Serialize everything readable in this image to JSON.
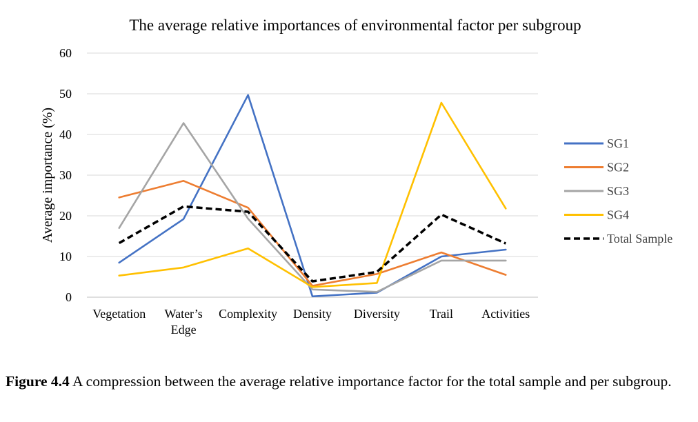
{
  "chart_data": {
    "type": "line",
    "title": "The average relative importances of environmental factor per subgroup",
    "xlabel": "",
    "ylabel": "Average importance (%)",
    "categories": [
      "Vegetation",
      "Water’s Edge",
      "Complexity",
      "Density",
      "Diversity",
      "Trail",
      "Activities"
    ],
    "category_lines": [
      [
        "Vegetation"
      ],
      [
        "Water’s",
        "Edge"
      ],
      [
        "Complexity"
      ],
      [
        "Density"
      ],
      [
        "Diversity"
      ],
      [
        "Trail"
      ],
      [
        "Activities"
      ]
    ],
    "ylim": [
      0,
      60
    ],
    "yticks": [
      0,
      10,
      20,
      30,
      40,
      50,
      60
    ],
    "grid": true,
    "legend_position": "right",
    "series": [
      {
        "name": "SG1",
        "color": "#4472C4",
        "dashed": false,
        "values": [
          8.5,
          19.2,
          49.7,
          0.2,
          1.1,
          10.0,
          11.7
        ]
      },
      {
        "name": "SG2",
        "color": "#ED7D31",
        "dashed": false,
        "values": [
          24.5,
          28.6,
          22.0,
          2.8,
          5.7,
          11.0,
          5.5
        ]
      },
      {
        "name": "SG3",
        "color": "#A5A5A5",
        "dashed": false,
        "values": [
          17.0,
          42.8,
          19.3,
          1.9,
          1.3,
          9.0,
          9.0
        ]
      },
      {
        "name": "SG4",
        "color": "#FFC000",
        "dashed": false,
        "values": [
          5.3,
          7.3,
          12.0,
          2.5,
          3.5,
          47.8,
          21.8
        ]
      },
      {
        "name": "Total Sample",
        "color": "#000000",
        "dashed": true,
        "values": [
          13.3,
          22.3,
          21.0,
          3.9,
          6.2,
          20.3,
          13.2
        ]
      }
    ]
  },
  "caption": {
    "label": "Figure 4.4",
    "text": " A compression between the average relative importance factor for the total sample and per subgroup."
  }
}
